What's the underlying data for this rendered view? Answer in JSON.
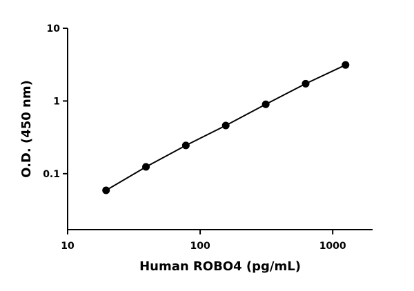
{
  "chart_data": {
    "type": "scatter",
    "x_label": "Human ROBO4 (pg/mL)",
    "y_label": "O.D. (450 nm)",
    "x": [
      19.5,
      39,
      78,
      156,
      312.5,
      625,
      1250
    ],
    "series": [
      {
        "color": "#000000",
        "values": [
          0.059,
          0.124,
          0.245,
          0.46,
          0.9,
          1.73,
          3.13
        ]
      }
    ],
    "xlim": [
      10,
      2000
    ],
    "ylim": [
      0.017,
      10
    ],
    "xticks": [
      10,
      100,
      1000
    ],
    "yticks": [
      0.1,
      1,
      10
    ],
    "xscale": "log",
    "yscale": "log",
    "grid": false,
    "line": true
  }
}
